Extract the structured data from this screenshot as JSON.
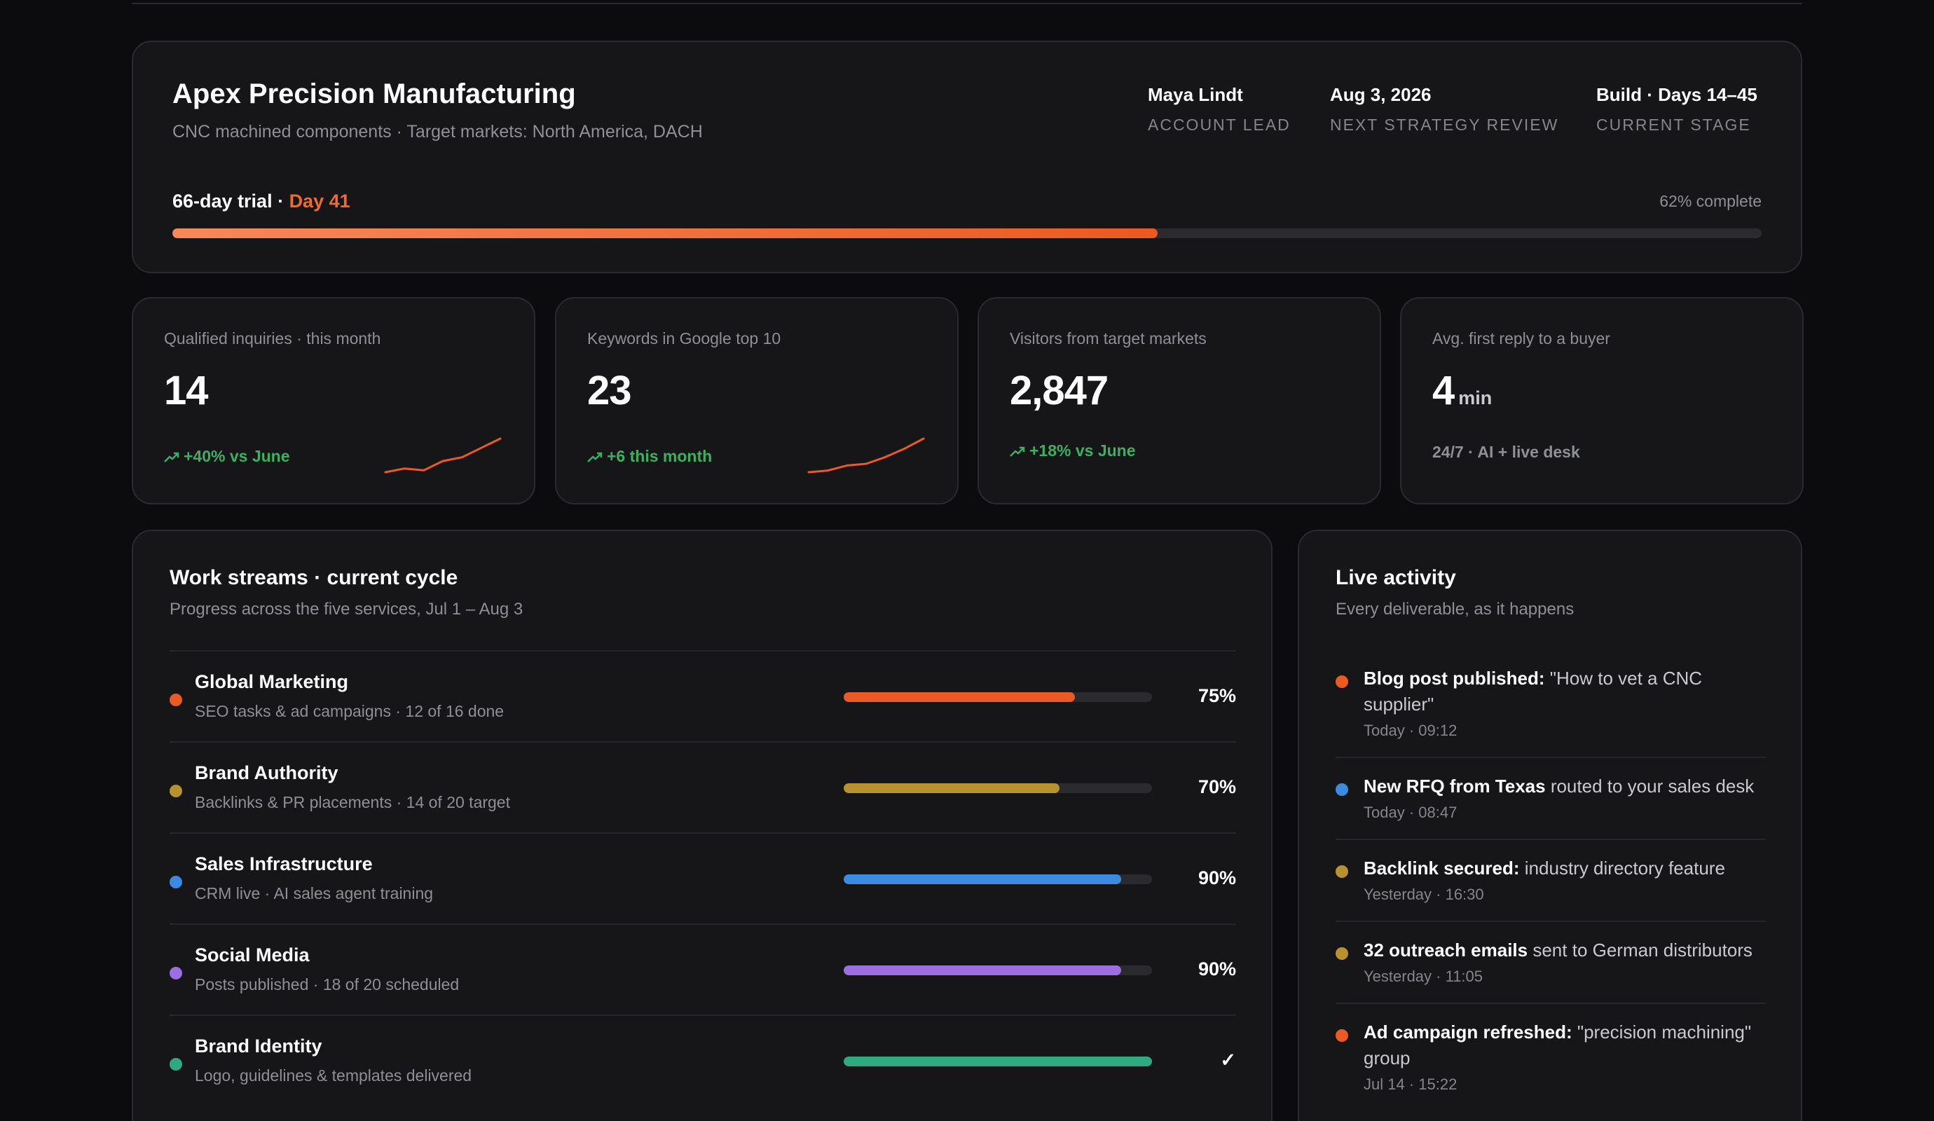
{
  "colors": {
    "accent_orange": "#ea5a22",
    "green": "#3eae63",
    "gold": "#b8922e",
    "blue": "#3b8be0",
    "purple": "#9b6fe0",
    "teal": "#2faa80"
  },
  "header": {
    "company": "Apex Precision Manufacturing",
    "subtitle": "CNC machined components · Target markets: North America, DACH",
    "meta": [
      {
        "value": "Maya Lindt",
        "label": "ACCOUNT LEAD"
      },
      {
        "value": "Aug 3, 2026",
        "label": "NEXT STRATEGY REVIEW"
      },
      {
        "value": "Build · Days 14–45",
        "label": "CURRENT STAGE"
      }
    ],
    "trial": {
      "prefix": "66-day trial · ",
      "day": "Day 41",
      "percent_text": "62% complete",
      "progress": 0.62
    }
  },
  "kpis": [
    {
      "label": "Qualified inquiries · this month",
      "value": "14",
      "delta": "+40% vs June",
      "trend_icon": "trend-up-icon",
      "sparkline": [
        3,
        4,
        3.5,
        6,
        7,
        9.5,
        12
      ]
    },
    {
      "label": "Keywords in Google top 10",
      "value": "23",
      "delta": "+6 this month",
      "trend_icon": "trend-up-icon",
      "sparkline": [
        2,
        2.5,
        4,
        4.5,
        6.5,
        9,
        12
      ]
    },
    {
      "label": "Visitors from target markets",
      "value": "2,847",
      "delta": "+18% vs June",
      "trend_icon": "trend-up-icon"
    },
    {
      "label": "Avg. first reply to a buyer",
      "value": "4",
      "unit": "min",
      "note": "24/7 · AI + live desk"
    }
  ],
  "work_streams": {
    "title": "Work streams · current cycle",
    "subtitle": "Progress across the five services, Jul 1 – Aug 3",
    "items": [
      {
        "name": "Global Marketing",
        "desc": "SEO tasks & ad campaigns · 12 of 16 done",
        "pct_text": "75%",
        "progress": 0.75,
        "color": "#ea5a22"
      },
      {
        "name": "Brand Authority",
        "desc": "Backlinks & PR placements · 14 of 20 target",
        "pct_text": "70%",
        "progress": 0.7,
        "color": "#b8922e"
      },
      {
        "name": "Sales Infrastructure",
        "desc": "CRM live · AI sales agent training",
        "pct_text": "90%",
        "progress": 0.9,
        "color": "#3b8be0"
      },
      {
        "name": "Social Media",
        "desc": "Posts published · 18 of 20 scheduled",
        "pct_text": "90%",
        "progress": 0.9,
        "color": "#9b6fe0"
      },
      {
        "name": "Brand Identity",
        "desc": "Logo, guidelines & templates delivered",
        "pct_text": "✓",
        "progress": 1.0,
        "color": "#2faa80"
      }
    ]
  },
  "live_activity": {
    "title": "Live activity",
    "subtitle": "Every deliverable, as it happens",
    "items": [
      {
        "bold": "Blog post published:",
        "rest": " \"How to vet a CNC supplier\"",
        "time": "Today · 09:12",
        "color": "#ea5a22"
      },
      {
        "bold": "New RFQ from Texas",
        "rest": " routed to your sales desk",
        "time": "Today · 08:47",
        "color": "#3b8be0"
      },
      {
        "bold": "Backlink secured:",
        "rest": " industry directory feature",
        "time": "Yesterday · 16:30",
        "color": "#b8922e"
      },
      {
        "bold": "32 outreach emails",
        "rest": " sent to German distributors",
        "time": "Yesterday · 11:05",
        "color": "#b8922e"
      },
      {
        "bold": "Ad campaign refreshed:",
        "rest": " \"precision machining\" group",
        "time": "Jul 14 · 15:22",
        "color": "#ea5a22"
      }
    ]
  }
}
